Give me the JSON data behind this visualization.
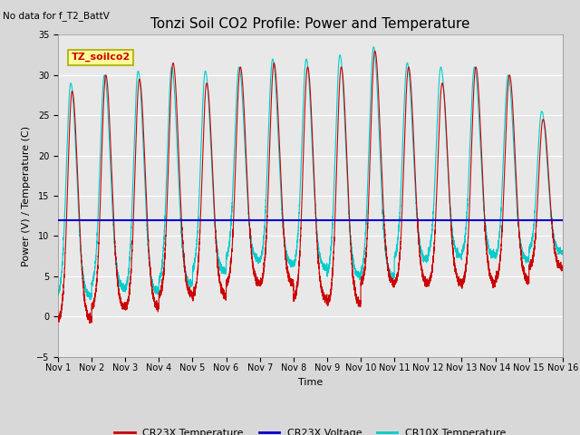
{
  "title": "Tonzi Soil CO2 Profile: Power and Temperature",
  "no_data_text": "No data for f_T2_BattV",
  "xlabel": "Time",
  "ylabel": "Power (V) / Temperature (C)",
  "ylim": [
    -5,
    35
  ],
  "yticks": [
    -5,
    0,
    5,
    10,
    15,
    20,
    25,
    30,
    35
  ],
  "xlim": [
    0,
    15
  ],
  "xtick_labels": [
    "Nov 1",
    "Nov 2",
    "Nov 3",
    "Nov 4",
    "Nov 5",
    "Nov 6",
    "Nov 7",
    "Nov 8",
    "Nov 9",
    "Nov 10",
    "Nov 11",
    "Nov 12",
    "Nov 13",
    "Nov 14",
    "Nov 15",
    "Nov 16"
  ],
  "background_color": "#d8d8d8",
  "plot_bg_color": "#e8e8e8",
  "cr23x_color": "#cc0000",
  "cr10x_color": "#00cccc",
  "voltage_color": "#0000cc",
  "voltage_value": 12.0,
  "legend_box_color": "#ffff99",
  "legend_box_edge": "#aaaa00",
  "legend_label": "TZ_soilco2",
  "legend_fontsize": 8,
  "title_fontsize": 11,
  "label_fontsize": 8,
  "tick_fontsize": 7,
  "num_cycles": 15,
  "cr23x_peaks": [
    28,
    30,
    29.5,
    31.5,
    29,
    31,
    31.5,
    31,
    31,
    33,
    31,
    29,
    31,
    30,
    24.5
  ],
  "cr23x_mins": [
    -0.5,
    1,
    1,
    2.5,
    2.5,
    4,
    4,
    2,
    1.5,
    4,
    4,
    4,
    4,
    4.5,
    6
  ],
  "cr10x_peaks": [
    29,
    30,
    30.5,
    31,
    30.5,
    31,
    32,
    32,
    32.5,
    33.5,
    31.5,
    31,
    31,
    30,
    25.5
  ],
  "cr10x_mins": [
    2.5,
    3.5,
    3,
    4,
    5.5,
    7,
    6.5,
    6,
    5,
    5,
    7,
    7.5,
    7.5,
    7,
    8
  ]
}
